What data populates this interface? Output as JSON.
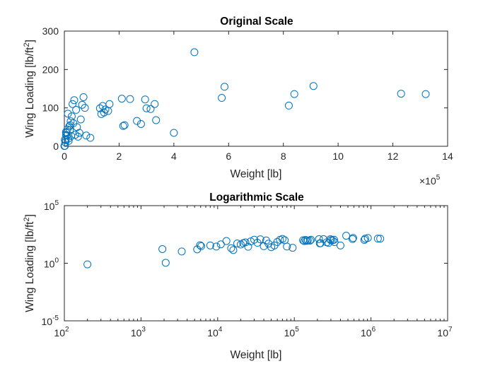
{
  "charts": [
    {
      "title": "Original Scale",
      "xlabel": "Weight [lb]",
      "ylabel_main": "Wing Loading [lb/ft",
      "ylabel_sup": "2",
      "ylabel_tail": "]",
      "x_multiplier_base": "×10",
      "x_multiplier_exp": "5",
      "xticks": [
        "0",
        "2",
        "4",
        "6",
        "8",
        "10",
        "12",
        "14"
      ],
      "yticks": [
        "0",
        "100",
        "200",
        "300"
      ]
    },
    {
      "title": "Logarithmic Scale",
      "xlabel": "Weight [lb]",
      "ylabel_main": "Wing Loading [lb/ft",
      "ylabel_sup": "2",
      "ylabel_tail": "]",
      "xticks": [
        {
          "base": "10",
          "exp": "2"
        },
        {
          "base": "10",
          "exp": "3"
        },
        {
          "base": "10",
          "exp": "4"
        },
        {
          "base": "10",
          "exp": "5"
        },
        {
          "base": "10",
          "exp": "6"
        },
        {
          "base": "10",
          "exp": "7"
        }
      ],
      "yticks": [
        {
          "base": "10",
          "exp": "-5"
        },
        {
          "base": "10",
          "exp": "0"
        },
        {
          "base": "10",
          "exp": "5"
        }
      ]
    }
  ],
  "chart_data": [
    {
      "type": "scatter",
      "title": "Original Scale",
      "xlabel": "Weight [lb]",
      "ylabel": "Wing Loading [lb/ft^2]",
      "x_scale": "linear",
      "y_scale": "linear",
      "x_multiplier": 100000,
      "xlim": [
        0,
        1400000
      ],
      "ylim": [
        0,
        300
      ],
      "marker": "open-circle",
      "color": "#0072BD",
      "grid": false,
      "legend": "none"
    },
    {
      "type": "scatter",
      "title": "Logarithmic Scale",
      "xlabel": "Weight [lb]",
      "ylabel": "Wing Loading [lb/ft^2]",
      "x_scale": "log",
      "y_scale": "log",
      "xlim": [
        100,
        10000000
      ],
      "ylim": [
        1e-05,
        100000
      ],
      "marker": "open-circle",
      "color": "#0072BD",
      "grid": false,
      "legend": "none"
    }
  ],
  "points": [
    [
      200,
      0.8
    ],
    [
      1900,
      17
    ],
    [
      2100,
      1.1
    ],
    [
      3400,
      10.5
    ],
    [
      5400,
      16
    ],
    [
      5900,
      37
    ],
    [
      6100,
      30
    ],
    [
      8000,
      35
    ],
    [
      9600,
      28
    ],
    [
      11000,
      44
    ],
    [
      13000,
      85
    ],
    [
      15000,
      20
    ],
    [
      16000,
      14
    ],
    [
      18000,
      52
    ],
    [
      20000,
      42
    ],
    [
      21500,
      55
    ],
    [
      23000,
      65
    ],
    [
      25000,
      27
    ],
    [
      27000,
      78
    ],
    [
      30000,
      110
    ],
    [
      33000,
      60
    ],
    [
      36000,
      120
    ],
    [
      40000,
      30
    ],
    [
      43000,
      95
    ],
    [
      46000,
      50
    ],
    [
      50000,
      25
    ],
    [
      55000,
      35
    ],
    [
      60000,
      70
    ],
    [
      65000,
      108
    ],
    [
      70000,
      128
    ],
    [
      75000,
      100
    ],
    [
      80000,
      28
    ],
    [
      95000,
      22
    ],
    [
      130000,
      99
    ],
    [
      135000,
      84
    ],
    [
      140000,
      105
    ],
    [
      145000,
      88
    ],
    [
      150000,
      96
    ],
    [
      160000,
      92
    ],
    [
      165000,
      110
    ],
    [
      210000,
      124
    ],
    [
      215000,
      53
    ],
    [
      220000,
      55
    ],
    [
      240000,
      123
    ],
    [
      265000,
      66
    ],
    [
      280000,
      58
    ],
    [
      295000,
      122
    ],
    [
      300000,
      99
    ],
    [
      315000,
      97
    ],
    [
      330000,
      110
    ],
    [
      335000,
      68
    ],
    [
      400000,
      35
    ],
    [
      475000,
      245
    ],
    [
      575000,
      126
    ],
    [
      585000,
      155
    ],
    [
      820000,
      106
    ],
    [
      840000,
      136
    ],
    [
      910000,
      157
    ],
    [
      1230000,
      137
    ],
    [
      1320000,
      136
    ]
  ]
}
